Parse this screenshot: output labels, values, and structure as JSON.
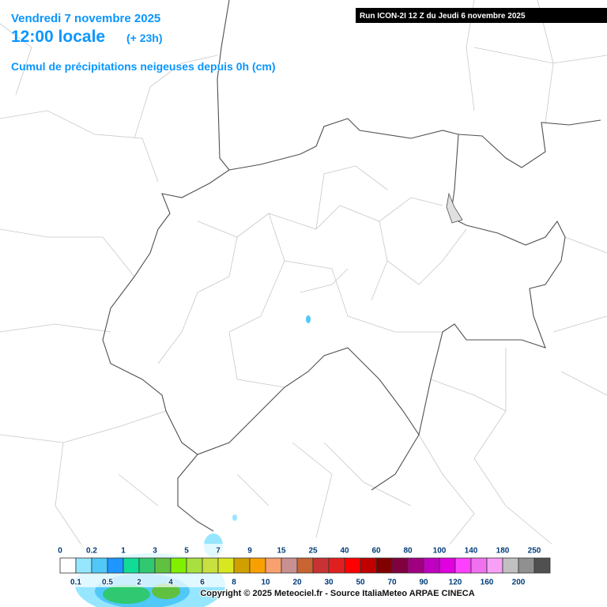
{
  "header": {
    "date": "Vendredi 7 novembre 2025",
    "time": "12:00 locale",
    "lead": "(+ 23h)",
    "subtitle": "Cumul de précipitations neigeuses depuis 0h (cm)",
    "run": "Run ICON-2I 12 Z du Jeudi 6 novembre 2025"
  },
  "legend": {
    "labels": [
      "0",
      "0.1",
      "0.2",
      "0.5",
      "1",
      "2",
      "3",
      "4",
      "5",
      "6",
      "7",
      "8",
      "9",
      "10",
      "15",
      "20",
      "25",
      "30",
      "40",
      "50",
      "60",
      "70",
      "80",
      "90",
      "100",
      "120",
      "140",
      "160",
      "180",
      "200",
      "250"
    ],
    "colors": [
      "#ffffff",
      "#96e6ff",
      "#50c8f8",
      "#1e96ff",
      "#10dc96",
      "#30c870",
      "#60c040",
      "#80f000",
      "#a8e040",
      "#c8e040",
      "#d8e820",
      "#d0a000",
      "#f8a000",
      "#f8a070",
      "#c89090",
      "#c86432",
      "#c83232",
      "#e02020",
      "#ff0000",
      "#c00000",
      "#800000",
      "#800040",
      "#a00080",
      "#c000c0",
      "#e000e0",
      "#ff40ff",
      "#f070f0",
      "#f8a0f8",
      "#c0c0c0",
      "#909090",
      "#505050"
    ]
  },
  "footer": {
    "copyright": "Copyright © 2025 Meteociel.fr - Source ItaliaMeteo ARPAE CINECA"
  }
}
